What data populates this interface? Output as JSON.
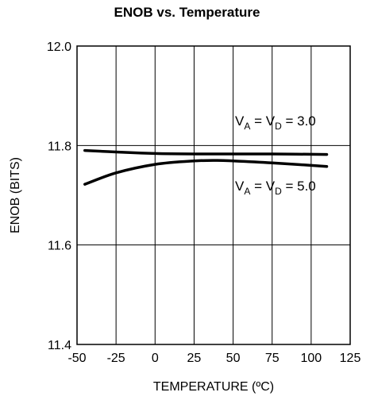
{
  "chart_data": {
    "type": "line",
    "title": "ENOB vs. Temperature",
    "xlabel": "TEMPERATURE (ºC)",
    "ylabel": "ENOB (BITS)",
    "xlim": [
      -50,
      125
    ],
    "ylim": [
      11.4,
      12.0
    ],
    "x_ticks": [
      -50,
      -25,
      0,
      25,
      50,
      75,
      100,
      125
    ],
    "x_tick_labels": [
      "-50",
      "-25",
      "0",
      "25",
      "50",
      "75",
      "100",
      "125"
    ],
    "y_ticks": [
      11.4,
      11.6,
      11.8,
      12.0
    ],
    "y_tick_labels": [
      "11.4",
      "11.6",
      "11.8",
      "12.0"
    ],
    "grid": true,
    "series": [
      {
        "name": "VA = VD = 3.0",
        "label_parts": {
          "v": "V",
          "sub_a": "A",
          "eq1": " = ",
          "sub_d": "D",
          "value": " = 3.0"
        },
        "x": [
          -45,
          -25,
          0,
          25,
          50,
          75,
          110
        ],
        "y": [
          11.79,
          11.787,
          11.784,
          11.783,
          11.783,
          11.783,
          11.782
        ]
      },
      {
        "name": "VA = VD = 5.0",
        "label_parts": {
          "v": "V",
          "sub_a": "A",
          "eq1": " = ",
          "sub_d": "D",
          "value": " = 5.0"
        },
        "x": [
          -45,
          -25,
          0,
          25,
          40,
          50,
          75,
          110
        ],
        "y": [
          11.722,
          11.745,
          11.762,
          11.769,
          11.77,
          11.769,
          11.765,
          11.758
        ]
      }
    ],
    "color": "#000000"
  }
}
